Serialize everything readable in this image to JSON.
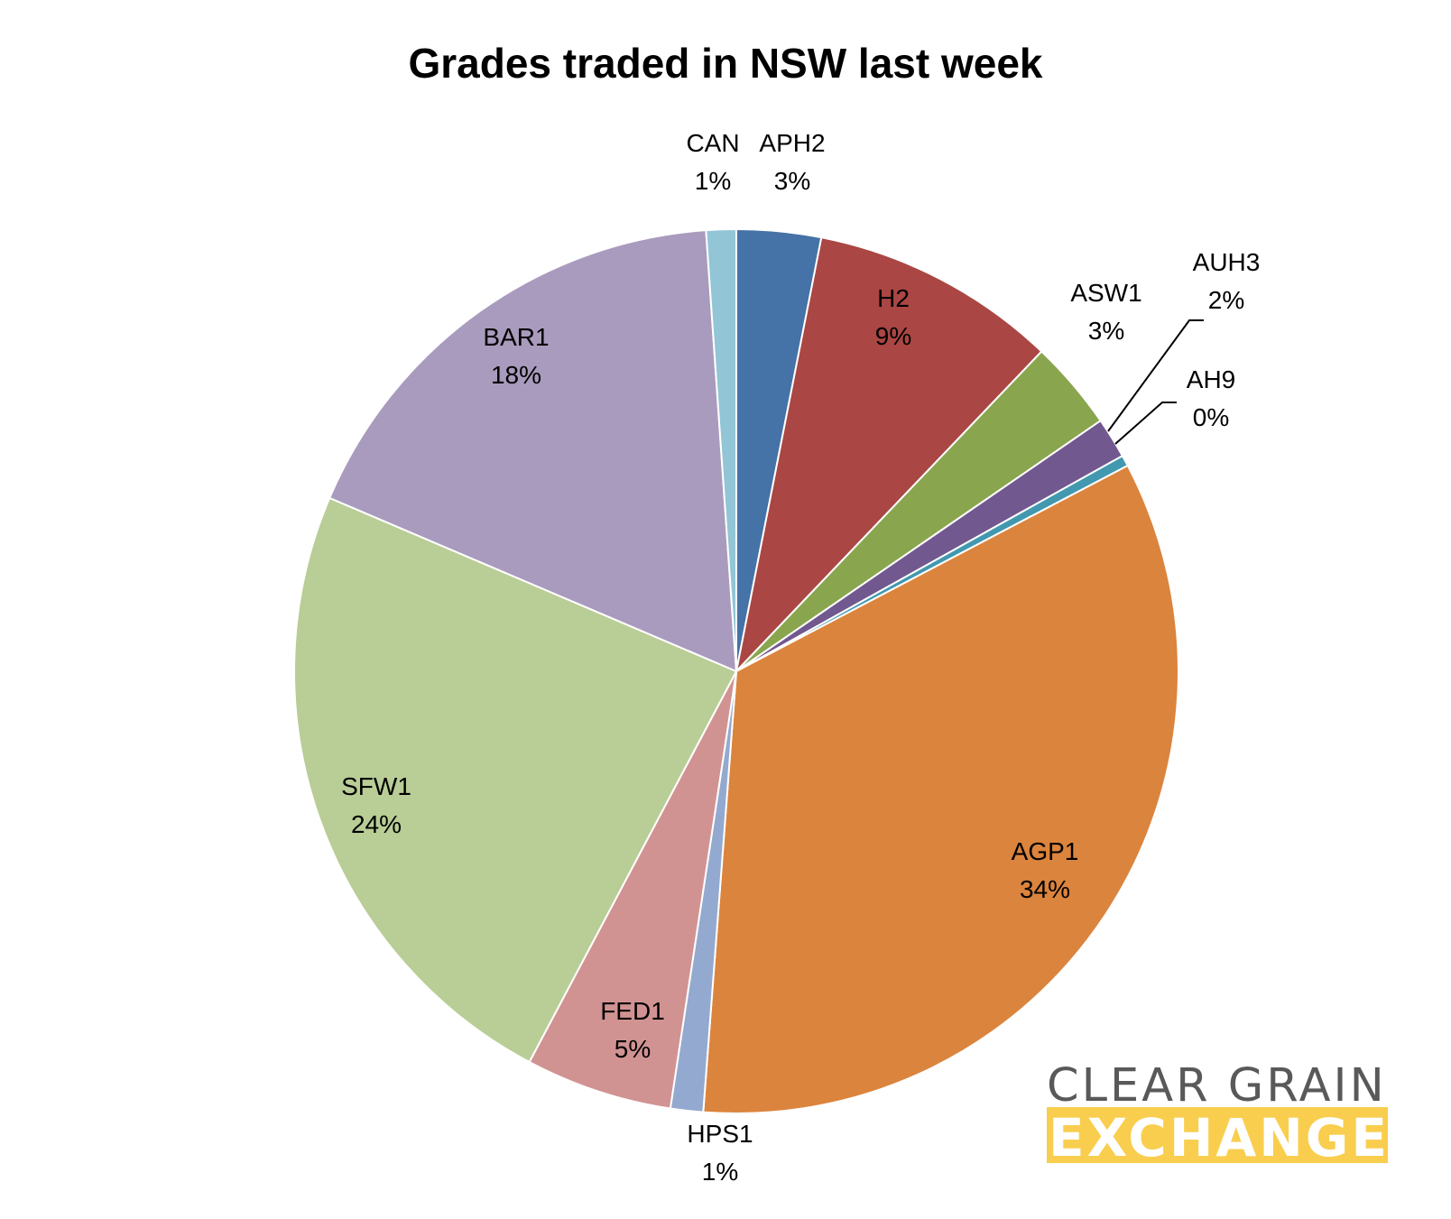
{
  "chart_data": {
    "type": "pie",
    "title": "Grades traded in NSW last week",
    "start_angle_deg": 0,
    "direction": "clockwise",
    "slices": [
      {
        "label": "APH2",
        "value": 3.1,
        "percent_label": "3%",
        "color": "#4572A7"
      },
      {
        "label": "H2",
        "value": 9.1,
        "percent_label": "9%",
        "color": "#AA4643"
      },
      {
        "label": "ASW1",
        "value": 3.3,
        "percent_label": "3%",
        "color": "#89A54E"
      },
      {
        "label": "AUH3",
        "value": 1.5,
        "percent_label": "2%",
        "color": "#71588F"
      },
      {
        "label": "AH9",
        "value": 0.4,
        "percent_label": "0%",
        "color": "#4198AF"
      },
      {
        "label": "AGP1",
        "value": 34.1,
        "percent_label": "34%",
        "color": "#DB843D"
      },
      {
        "label": "HPS1",
        "value": 1.2,
        "percent_label": "1%",
        "color": "#93A9CF"
      },
      {
        "label": "FED1",
        "value": 5.4,
        "percent_label": "5%",
        "color": "#D19392"
      },
      {
        "label": "SFW1",
        "value": 23.8,
        "percent_label": "24%",
        "color": "#B9CD96"
      },
      {
        "label": "BAR1",
        "value": 17.6,
        "percent_label": "18%",
        "color": "#A99BBD"
      },
      {
        "label": "CAN",
        "value": 1.1,
        "percent_label": "1%",
        "color": "#92C5D6"
      }
    ]
  },
  "logo": {
    "line1": "CLEAR GRAIN",
    "line2": "EXCHANGE",
    "line1_color": "#595959",
    "line2_bg_color": "#F9CE4E"
  }
}
